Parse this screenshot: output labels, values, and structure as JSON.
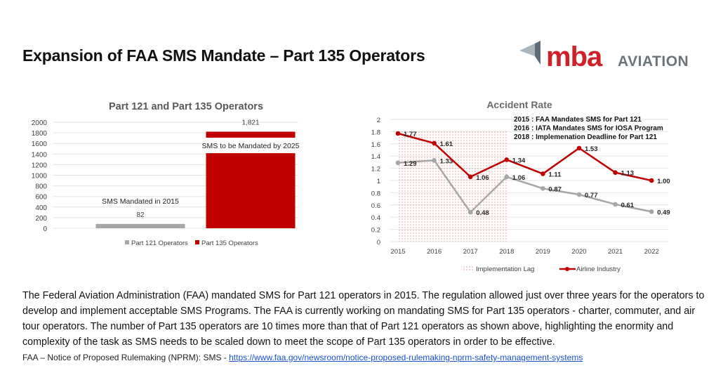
{
  "title": "Expansion of FAA SMS Mandate – Part 135 Operators",
  "logo": {
    "text_mark": "mba",
    "text_word": "AVIATION",
    "colors": {
      "mark": "#d0202a",
      "word": "#6d7479",
      "wing_dark": "#5e6a75",
      "wing_light": "#a9b4bd"
    }
  },
  "chart_data": [
    {
      "type": "bar",
      "title": "Part 121 and Part 135 Operators",
      "categories": [
        "Part 121 Operators",
        "Part 135 Operators"
      ],
      "values": [
        82,
        1821
      ],
      "data_labels": [
        "82",
        "1,821"
      ],
      "annotations": [
        "SMS Mandated in 2015",
        "SMS to be Mandated by 2025"
      ],
      "colors": [
        "#a6a6a6",
        "#c00000"
      ],
      "ylim": [
        0,
        2000
      ],
      "yticks": [
        "0",
        "200",
        "400",
        "600",
        "800",
        "1000",
        "1200",
        "1400",
        "1600",
        "1800",
        "2000"
      ],
      "grid": true,
      "legend": "bottom"
    },
    {
      "type": "line",
      "title": "Accident Rate",
      "categories": [
        "2015",
        "2016",
        "2017",
        "2018",
        "2019",
        "2020",
        "2021",
        "2022"
      ],
      "series": [
        {
          "name": "Airline Industry",
          "values": [
            1.77,
            1.61,
            1.06,
            1.34,
            1.11,
            1.53,
            1.13,
            1.0
          ],
          "labels": [
            "1.77",
            "1.61",
            "1.06",
            "1.34",
            "1.11",
            "1.53",
            "1.13",
            "1.00"
          ],
          "color": "#c00000"
        },
        {
          "values": [
            1.29,
            1.33,
            0.48,
            1.06,
            0.87,
            0.77,
            0.61,
            0.49
          ],
          "labels": [
            "1.29",
            "1.33",
            "0.48",
            "1.06",
            "0.87",
            "0.77",
            "0.61",
            "0.49"
          ],
          "color": "#a6a6a6"
        }
      ],
      "shaded_region": {
        "name": "Implementation Lag",
        "x_from": "2015",
        "x_to": "2018",
        "y_to": 1.8,
        "color": "#e06060"
      },
      "annotations": [
        "2015 : FAA Mandates SMS for Part 121",
        "2016 : IATA Mandates SMS for IOSA Program",
        "2018 : Implemenation Deadline for Part 121"
      ],
      "ylim": [
        0,
        2
      ],
      "yticks": [
        "0",
        "0.2",
        "0.4",
        "0.6",
        "0.8",
        "1",
        "1.2",
        "1.4",
        "1.6",
        "1.8",
        "2"
      ],
      "grid": true,
      "legend": "bottom"
    }
  ],
  "body_text": "The Federal Aviation Administration (FAA) mandated SMS for Part 121 operators in 2015. The regulation allowed just over three years for the operators to develop and implement acceptable SMS Programs. The FAA is currently working on mandating SMS for Part 135 operators - charter, commuter, and air tour operators. The number of Part 135 operators are 10 times more than that of Part 121 operators as shown above, highlighting the enormity and complexity of the task as SMS needs to be scaled down to meet the scope of Part 135 operators in order to be effective.",
  "footnote": {
    "label": "FAA – Notice of Proposed Rulemaking (NPRM): SMS - ",
    "link": "https://www.faa.gov/newsroom/notice-proposed-rulemaking-nprm-safety-management-systems"
  }
}
